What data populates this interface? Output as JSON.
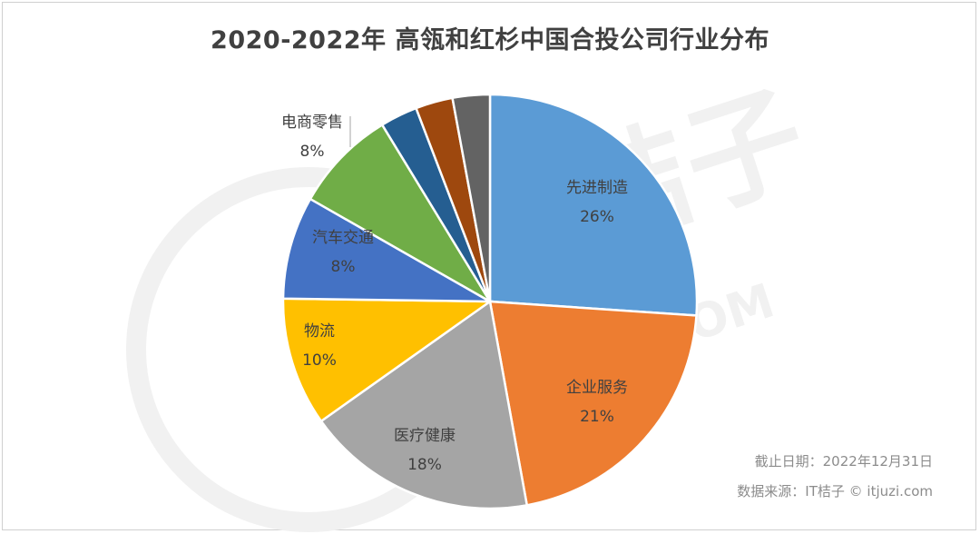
{
  "chart_data": {
    "type": "pie",
    "title": "2020-2022年 高瓴和红杉中国合投公司行业分布",
    "slices": [
      {
        "label": "先进制造",
        "value_label": "26%",
        "value": 26,
        "color": "#5b9bd5"
      },
      {
        "label": "企业服务",
        "value_label": "21%",
        "value": 21,
        "color": "#ed7d31"
      },
      {
        "label": "医疗健康",
        "value_label": "18%",
        "value": 18,
        "color": "#a5a5a5"
      },
      {
        "label": "物流",
        "value_label": "10%",
        "value": 10,
        "color": "#ffc000"
      },
      {
        "label": "汽车交通",
        "value_label": "8%",
        "value": 8,
        "color": "#4472c4"
      },
      {
        "label": "电商零售",
        "value_label": "8%",
        "value": 8,
        "color": "#70ad47"
      },
      {
        "label": "",
        "value_label": "",
        "value": 2.9,
        "color": "#255e91"
      },
      {
        "label": "",
        "value_label": "",
        "value": 2.9,
        "color": "#9e480e"
      },
      {
        "label": "",
        "value_label": "",
        "value": 2.9,
        "color": "#636363"
      }
    ]
  },
  "footnotes": {
    "date": "截止日期：2022年12月31日",
    "source": "数据来源：IT桔子 © itjuzi.com"
  },
  "watermark": {
    "text_a": "桔子",
    "text_b": ".COM",
    "color": "#f1f1f1"
  }
}
